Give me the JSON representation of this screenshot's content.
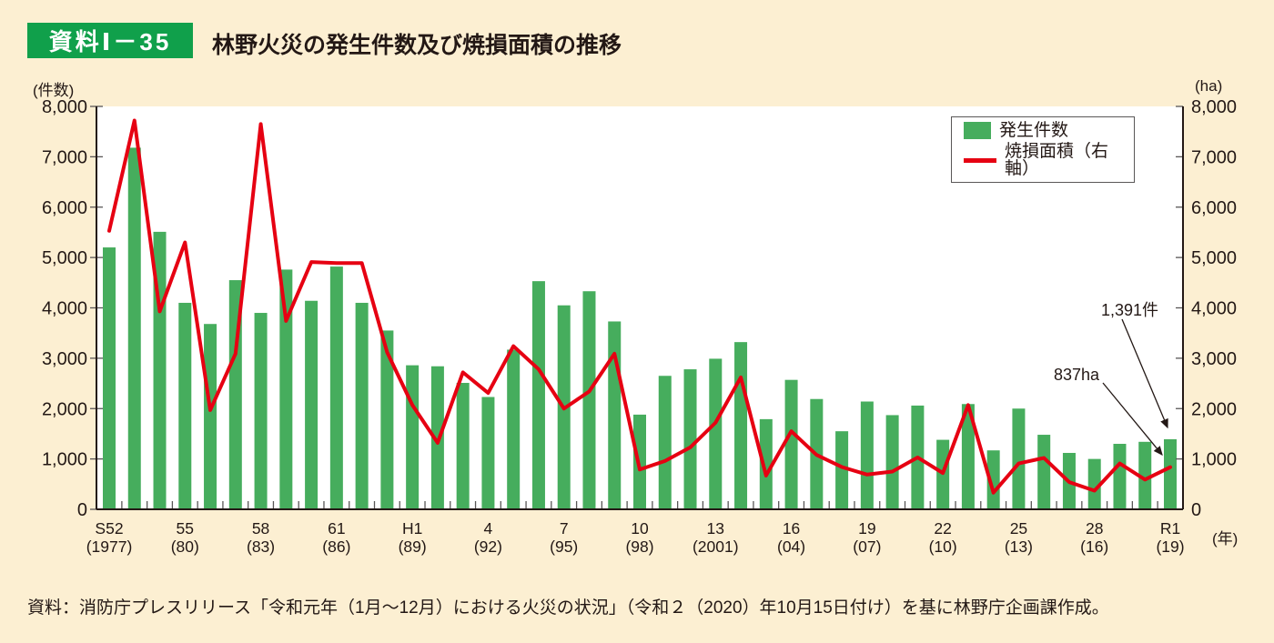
{
  "header": {
    "badge": "資料Ⅰ－35",
    "title": "林野火災の発生件数及び焼損面積の推移"
  },
  "axes": {
    "left_unit": "(件数)",
    "right_unit": "(ha)",
    "x_unit": "(年)"
  },
  "legend": {
    "bar_label": "発生件数",
    "line_label": "焼損面積（右軸）"
  },
  "annotations": {
    "count_label": "1,391件",
    "area_label": "837ha"
  },
  "source": "資料：消防庁プレスリリース「令和元年（1月～12月）における火災の状況」（令和２（2020）年10月15日付け）を基に林野庁企画課作成。",
  "colors": {
    "background": "#fcefd2",
    "plot_background": "#ffffff",
    "bar": "#46ad5d",
    "line": "#e60012",
    "badge_bg": "#10a04b",
    "text": "#231815",
    "axis": "#231815",
    "tick": "#595757",
    "legend_border": "#595757"
  },
  "chart_data": {
    "type": "bar",
    "title": "林野火災の発生件数及び焼損面積の推移",
    "x": [
      1977,
      1978,
      1979,
      1980,
      1981,
      1982,
      1983,
      1984,
      1985,
      1986,
      1987,
      1988,
      1989,
      1990,
      1991,
      1992,
      1993,
      1994,
      1995,
      1996,
      1997,
      1998,
      1999,
      2000,
      2001,
      2002,
      2003,
      2004,
      2005,
      2006,
      2007,
      2008,
      2009,
      2010,
      2011,
      2012,
      2013,
      2014,
      2015,
      2016,
      2017,
      2018,
      2019
    ],
    "series": [
      {
        "name": "発生件数",
        "type": "bar",
        "axis": "left",
        "unit": "件",
        "values": [
          5200,
          7180,
          5510,
          4100,
          3680,
          4550,
          3900,
          4760,
          4140,
          4820,
          4100,
          3550,
          2860,
          2840,
          2510,
          2230,
          3170,
          4530,
          4050,
          4330,
          3730,
          1880,
          2650,
          2780,
          2990,
          3320,
          1790,
          2570,
          2190,
          1550,
          2140,
          1870,
          2060,
          1380,
          2090,
          1170,
          2000,
          1480,
          1120,
          1000,
          1300,
          1340,
          1391
        ]
      },
      {
        "name": "焼損面積（右軸）",
        "type": "line",
        "axis": "right",
        "unit": "ha",
        "values": [
          5530,
          7720,
          3930,
          5300,
          1970,
          3090,
          7650,
          3740,
          4910,
          4890,
          4890,
          3120,
          2070,
          1320,
          2720,
          2310,
          3240,
          2780,
          2000,
          2340,
          3090,
          790,
          960,
          1230,
          1720,
          2620,
          670,
          1550,
          1080,
          840,
          690,
          750,
          1030,
          720,
          2070,
          330,
          910,
          1020,
          540,
          370,
          910,
          590,
          837
        ]
      }
    ],
    "x_tick_labels": [
      {
        "i": 0,
        "era": "S52",
        "west": "(1977)"
      },
      {
        "i": 3,
        "era": "55",
        "west": "(80)"
      },
      {
        "i": 6,
        "era": "58",
        "west": "(83)"
      },
      {
        "i": 9,
        "era": "61",
        "west": "(86)"
      },
      {
        "i": 12,
        "era": "H1",
        "west": "(89)"
      },
      {
        "i": 15,
        "era": "4",
        "west": "(92)"
      },
      {
        "i": 18,
        "era": "7",
        "west": "(95)"
      },
      {
        "i": 21,
        "era": "10",
        "west": "(98)"
      },
      {
        "i": 24,
        "era": "13",
        "west": "(2001)"
      },
      {
        "i": 27,
        "era": "16",
        "west": "(04)"
      },
      {
        "i": 30,
        "era": "19",
        "west": "(07)"
      },
      {
        "i": 33,
        "era": "22",
        "west": "(10)"
      },
      {
        "i": 36,
        "era": "25",
        "west": "(13)"
      },
      {
        "i": 39,
        "era": "28",
        "west": "(16)"
      },
      {
        "i": 42,
        "era": "R1",
        "west": "(19)"
      }
    ],
    "y_left": {
      "label": "(件数)",
      "min": 0,
      "max": 8000,
      "tick_step": 1000
    },
    "y_right": {
      "label": "(ha)",
      "min": 0,
      "max": 8000,
      "tick_step": 1000
    },
    "y_tick_labels": [
      "0",
      "1,000",
      "2,000",
      "3,000",
      "4,000",
      "5,000",
      "6,000",
      "7,000",
      "8,000"
    ],
    "grid": false,
    "legend_position": "top-right",
    "annotated_points": [
      {
        "year": 2019,
        "series": "発生件数",
        "value": 1391,
        "label": "1,391件"
      },
      {
        "year": 2019,
        "series": "焼損面積（右軸）",
        "value": 837,
        "label": "837ha"
      }
    ]
  }
}
